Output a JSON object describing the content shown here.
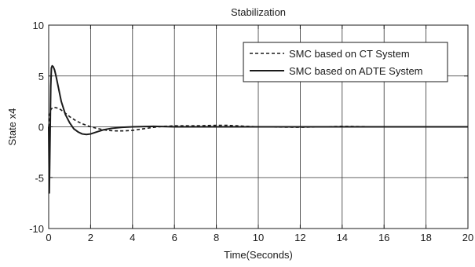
{
  "chart_data": {
    "type": "line",
    "title": "Stabilization",
    "xlabel": "Time(Seconds)",
    "ylabel": "State x4",
    "xlim": [
      0,
      20
    ],
    "ylim": [
      -10,
      10
    ],
    "xticks": [
      0,
      2,
      4,
      6,
      8,
      10,
      12,
      14,
      16,
      18,
      20
    ],
    "yticks": [
      -10,
      -5,
      0,
      5,
      10
    ],
    "grid": true,
    "legend_position": "top-right",
    "series": [
      {
        "name": "SMC based on CT System",
        "style": "dashed",
        "color": "#1a1a1a",
        "x": [
          0,
          0.05,
          0.1,
          0.2,
          0.3,
          0.5,
          0.7,
          1.0,
          1.3,
          1.6,
          2.0,
          2.4,
          2.8,
          3.2,
          3.6,
          4.0,
          4.5,
          5.0,
          5.5,
          6.0,
          7.0,
          8.0,
          8.5,
          9.0,
          10.0,
          12.0,
          14.0,
          16.0,
          18.0,
          20.0
        ],
        "y": [
          0,
          1.2,
          1.7,
          1.9,
          1.9,
          1.8,
          1.5,
          1.0,
          0.6,
          0.3,
          0.0,
          -0.2,
          -0.35,
          -0.4,
          -0.4,
          -0.35,
          -0.2,
          -0.05,
          0.05,
          0.1,
          0.1,
          0.15,
          0.15,
          0.1,
          0.0,
          -0.05,
          0.05,
          0.0,
          0.0,
          0.0
        ]
      },
      {
        "name": "SMC based on ADTE System",
        "style": "solid",
        "color": "#1a1a1a",
        "x": [
          0,
          0.03,
          0.06,
          0.1,
          0.13,
          0.17,
          0.22,
          0.28,
          0.35,
          0.45,
          0.6,
          0.8,
          1.0,
          1.2,
          1.4,
          1.6,
          1.8,
          2.0,
          2.3,
          2.6,
          3.0,
          3.5,
          4.0,
          5.0,
          6.0,
          8.0,
          10.0,
          12.0,
          14.0,
          16.0,
          18.0,
          20.0
        ],
        "y": [
          0,
          -6.5,
          -2.0,
          4.0,
          5.8,
          6.0,
          5.9,
          5.6,
          5.0,
          4.0,
          2.5,
          1.2,
          0.4,
          -0.2,
          -0.5,
          -0.7,
          -0.75,
          -0.7,
          -0.5,
          -0.3,
          -0.15,
          -0.05,
          0.0,
          0.05,
          0.0,
          0.0,
          0.0,
          0.0,
          0.0,
          0.0,
          0.0,
          0.0
        ]
      }
    ]
  }
}
